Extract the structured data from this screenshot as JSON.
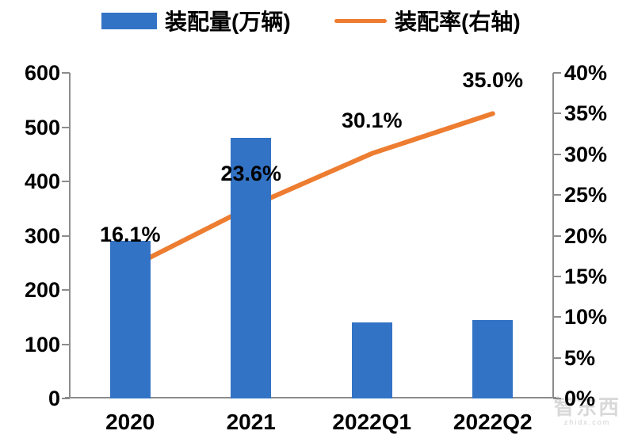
{
  "legend": [
    {
      "label": "装配量(万辆)",
      "type": "bar",
      "color": "#3373C5"
    },
    {
      "label": "装配率(右轴)",
      "type": "line",
      "color": "#ED7D31"
    }
  ],
  "chart_data": {
    "type": "bar",
    "subtype": "combo-bar-line-dual-axis",
    "categories": [
      "2020",
      "2021",
      "2022Q1",
      "2022Q2"
    ],
    "series": [
      {
        "name": "装配量(万辆)",
        "type": "bar",
        "axis": "left",
        "color": "#3373C5",
        "values": [
          290,
          480,
          140,
          145
        ]
      },
      {
        "name": "装配率(右轴)",
        "type": "line",
        "axis": "right",
        "color": "#ED7D31",
        "values": [
          16.1,
          23.6,
          30.1,
          35.0
        ],
        "labels": [
          "16.1%",
          "23.6%",
          "30.1%",
          "35.0%"
        ]
      }
    ],
    "title": "",
    "xlabel": "",
    "ylabel_left": "",
    "ylabel_right": "",
    "left_axis": {
      "min": 0,
      "max": 600,
      "step": 100,
      "tick_labels_top_to_bottom": [
        "600",
        "500",
        "400",
        "300",
        "200",
        "100",
        "0"
      ]
    },
    "right_axis": {
      "min": 0,
      "max": 40,
      "step": 5,
      "tick_labels_top_to_bottom": [
        "40%",
        "35%",
        "30%",
        "25%",
        "20%",
        "15%",
        "10%",
        "5%",
        "0%"
      ]
    },
    "grid": false,
    "legend_position": "top"
  },
  "watermark": {
    "name": "智东西",
    "url": "zhidx.com"
  },
  "colors": {
    "bar": "#3373C5",
    "line": "#ED7D31",
    "axis": "#8C8C8C",
    "text": "#000000"
  }
}
